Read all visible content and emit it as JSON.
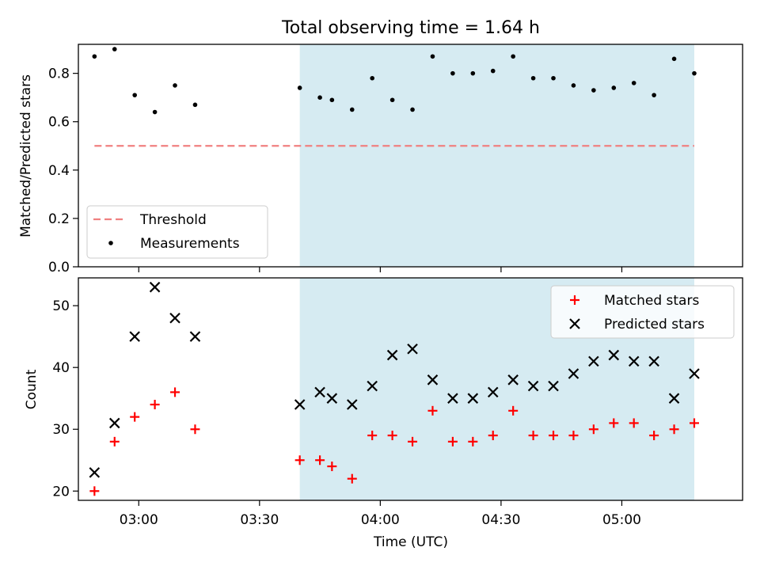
{
  "chart_data": [
    {
      "type": "scatter",
      "title": "Total observing time = 1.64 h",
      "ylabel": "Matched/Predicted stars",
      "xlabel": "",
      "xlim": [
        "02:45",
        "05:30"
      ],
      "ylim": [
        0,
        0.92
      ],
      "yticks": [
        0.0,
        0.2,
        0.4,
        0.6,
        0.8
      ],
      "ytick_labels": [
        "0.0",
        "0.2",
        "0.4",
        "0.6",
        "0.8"
      ],
      "grid": false,
      "legend_position": "lower-left",
      "shaded_interval": [
        "03:40",
        "05:18"
      ],
      "shade_color": "#add8e6",
      "threshold": {
        "name": "Threshold",
        "value": 0.5,
        "x_range": [
          "02:49",
          "05:18"
        ],
        "color": "#f08080"
      },
      "series": [
        {
          "name": "Measurements",
          "color": "#000000",
          "marker": "dot",
          "x": [
            "02:49",
            "02:54",
            "02:59",
            "03:04",
            "03:09",
            "03:14",
            "03:40",
            "03:45",
            "03:48",
            "03:53",
            "03:58",
            "04:03",
            "04:08",
            "04:13",
            "04:18",
            "04:23",
            "04:28",
            "04:33",
            "04:38",
            "04:43",
            "04:48",
            "04:53",
            "04:58",
            "05:03",
            "05:08",
            "05:13",
            "05:18"
          ],
          "y": [
            0.87,
            0.9,
            0.71,
            0.64,
            0.75,
            0.67,
            0.74,
            0.7,
            0.69,
            0.65,
            0.78,
            0.69,
            0.65,
            0.87,
            0.8,
            0.8,
            0.81,
            0.87,
            0.78,
            0.78,
            0.75,
            0.73,
            0.74,
            0.76,
            0.71,
            0.86,
            0.8
          ]
        }
      ]
    },
    {
      "type": "scatter",
      "title": "",
      "xlabel": "Time (UTC)",
      "ylabel": "Count",
      "xlim": [
        "02:45",
        "05:30"
      ],
      "ylim": [
        18.5,
        54.5
      ],
      "xticks": [
        "03:00",
        "03:30",
        "04:00",
        "04:30",
        "05:00"
      ],
      "yticks": [
        20,
        30,
        40,
        50
      ],
      "ytick_labels": [
        "20",
        "30",
        "40",
        "50"
      ],
      "grid": false,
      "legend_position": "upper-right",
      "shaded_interval": [
        "03:40",
        "05:18"
      ],
      "shade_color": "#add8e6",
      "series": [
        {
          "name": "Matched stars",
          "color": "#ff0000",
          "marker": "plus",
          "x": [
            "02:49",
            "02:54",
            "02:59",
            "03:04",
            "03:09",
            "03:14",
            "03:40",
            "03:45",
            "03:48",
            "03:53",
            "03:58",
            "04:03",
            "04:08",
            "04:13",
            "04:18",
            "04:23",
            "04:28",
            "04:33",
            "04:38",
            "04:43",
            "04:48",
            "04:53",
            "04:58",
            "05:03",
            "05:08",
            "05:13",
            "05:18"
          ],
          "y": [
            20,
            28,
            32,
            34,
            36,
            30,
            25,
            25,
            24,
            22,
            29,
            29,
            28,
            33,
            28,
            28,
            29,
            33,
            29,
            29,
            29,
            30,
            31,
            31,
            29,
            30,
            31
          ]
        },
        {
          "name": "Predicted stars",
          "color": "#000000",
          "marker": "x",
          "x": [
            "02:49",
            "02:54",
            "02:59",
            "03:04",
            "03:09",
            "03:14",
            "03:40",
            "03:45",
            "03:48",
            "03:53",
            "03:58",
            "04:03",
            "04:08",
            "04:13",
            "04:18",
            "04:23",
            "04:28",
            "04:33",
            "04:38",
            "04:43",
            "04:48",
            "04:53",
            "04:58",
            "05:03",
            "05:08",
            "05:13",
            "05:18"
          ],
          "y": [
            23,
            31,
            45,
            53,
            48,
            45,
            34,
            36,
            35,
            34,
            37,
            42,
            43,
            38,
            35,
            35,
            36,
            38,
            37,
            37,
            39,
            41,
            42,
            41,
            41,
            35,
            39
          ]
        }
      ]
    }
  ]
}
